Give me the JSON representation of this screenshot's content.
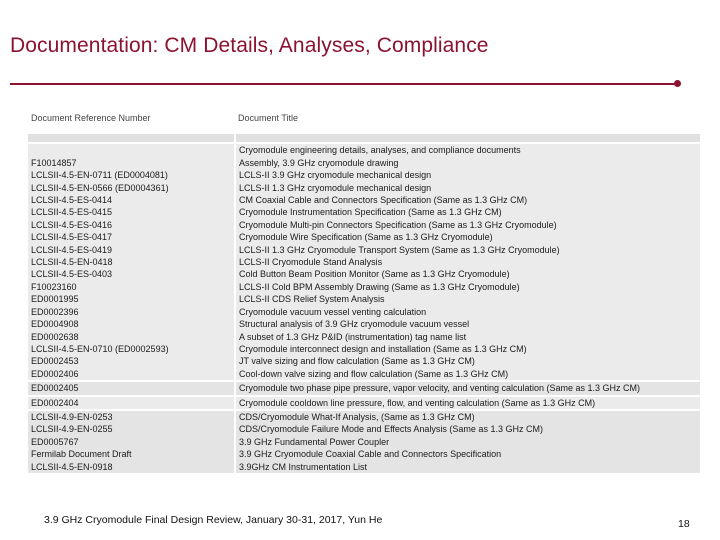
{
  "slide": {
    "title": "Documentation: CM Details, Analyses, Compliance",
    "accent_color": "#8b1230"
  },
  "table": {
    "headers": [
      "Document Reference Number",
      "Document Title"
    ],
    "section_title": "Cryomodule engineering details, analyses, and compliance documents",
    "rows_group1": [
      {
        "ref": "F10014857",
        "title": "Assembly, 3.9 GHz cryomodule drawing"
      },
      {
        "ref": "LCLSII-4.5-EN-0711 (ED0004081)",
        "title": "LCLS-II 3.9 GHz cryomodule mechanical design"
      },
      {
        "ref": "LCLSII-4.5-EN-0566 (ED0004361)",
        "title": "LCLS-II 1.3 GHz cryomodule mechanical design"
      },
      {
        "ref": "LCLSII-4.5-ES-0414",
        "title": "CM Coaxial Cable and Connectors Specification (Same as 1.3 GHz CM)"
      },
      {
        "ref": "LCLSII-4.5-ES-0415",
        "title": "Cryomodule Instrumentation Specification (Same as 1.3 GHz CM)"
      },
      {
        "ref": "LCLSII-4.5-ES-0416",
        "title": "Cryomodule Multi-pin Connectors Specification (Same as 1.3 GHz Cryomodule)"
      },
      {
        "ref": "LCLSII-4.5-ES-0417",
        "title": "Cryomodule Wire Specification (Same as 1.3 GHz Cryomodule)"
      },
      {
        "ref": "LCLSII-4.5-ES-0419",
        "title": "LCLS-II 1.3 GHz Cryomodule Transport System (Same as 1.3 GHz Cryomodule)"
      },
      {
        "ref": "LCLSII-4.5-EN-0418",
        "title": "LCLS-II Cryomodule Stand Analysis"
      },
      {
        "ref": "LCLSII-4.5-ES-0403",
        "title": "Cold Button Beam Position Monitor (Same as 1.3 GHz Cryomodule)"
      },
      {
        "ref": "F10023160",
        "title": "LCLS-II Cold BPM Assembly Drawing (Same as 1.3 GHz Cryomodule)"
      },
      {
        "ref": "ED0001995",
        "title": "LCLS-II CDS Relief System Analysis"
      },
      {
        "ref": "ED0002396",
        "title": "Cryomodule vacuum vessel venting calculation"
      },
      {
        "ref": "ED0004908",
        "title": "Structural analysis of 3.9 GHz cryomodule vacuum vessel"
      },
      {
        "ref": "ED0002638",
        "title": "A subset of 1.3 GHz P&ID (instrumentation) tag name list"
      },
      {
        "ref": "LCLSII-4.5-EN-0710 (ED0002593)",
        "title": "Cryomodule interconnect design and installation (Same as 1.3 GHz CM)"
      },
      {
        "ref": "ED0002453",
        "title": "JT valve sizing and flow calculation (Same as 1.3 GHz CM)"
      },
      {
        "ref": "ED0002406",
        "title": "Cool-down valve sizing and flow calculation (Same as 1.3 GHz CM)"
      }
    ],
    "row_single_a": {
      "ref": "ED0002405",
      "title": "Cryomodule two phase pipe pressure, vapor velocity, and venting calculation (Same as 1.3 GHz CM)"
    },
    "row_single_b": {
      "ref": "ED0002404",
      "title": "Cryomodule cooldown line pressure, flow, and venting calculation (Same as 1.3 GHz CM)"
    },
    "rows_group2": [
      {
        "ref": "LCLSII-4.9-EN-0253",
        "title": "CDS/Cryomodule What-If Analysis, (Same as 1.3 GHz CM)"
      },
      {
        "ref": "LCLSII-4.9-EN-0255",
        "title": "CDS/Cryomodule Failure Mode and Effects Analysis (Same as 1.3 GHz CM)"
      },
      {
        "ref": "ED0005767",
        "title": "3.9 GHz Fundamental Power Coupler"
      },
      {
        "ref": "Fermilab Document Draft",
        "title": "3.9 GHz Cryomodule Coaxial Cable and Connectors Specification"
      },
      {
        "ref": "LCLSII-4.5-EN-0918",
        "title": "3.9GHz CM Instrumentation List"
      }
    ]
  },
  "footer": {
    "text": "3.9 GHz Cryomodule Final Design Review, January 30-31, 2017, Yun He",
    "page_number": "18"
  }
}
